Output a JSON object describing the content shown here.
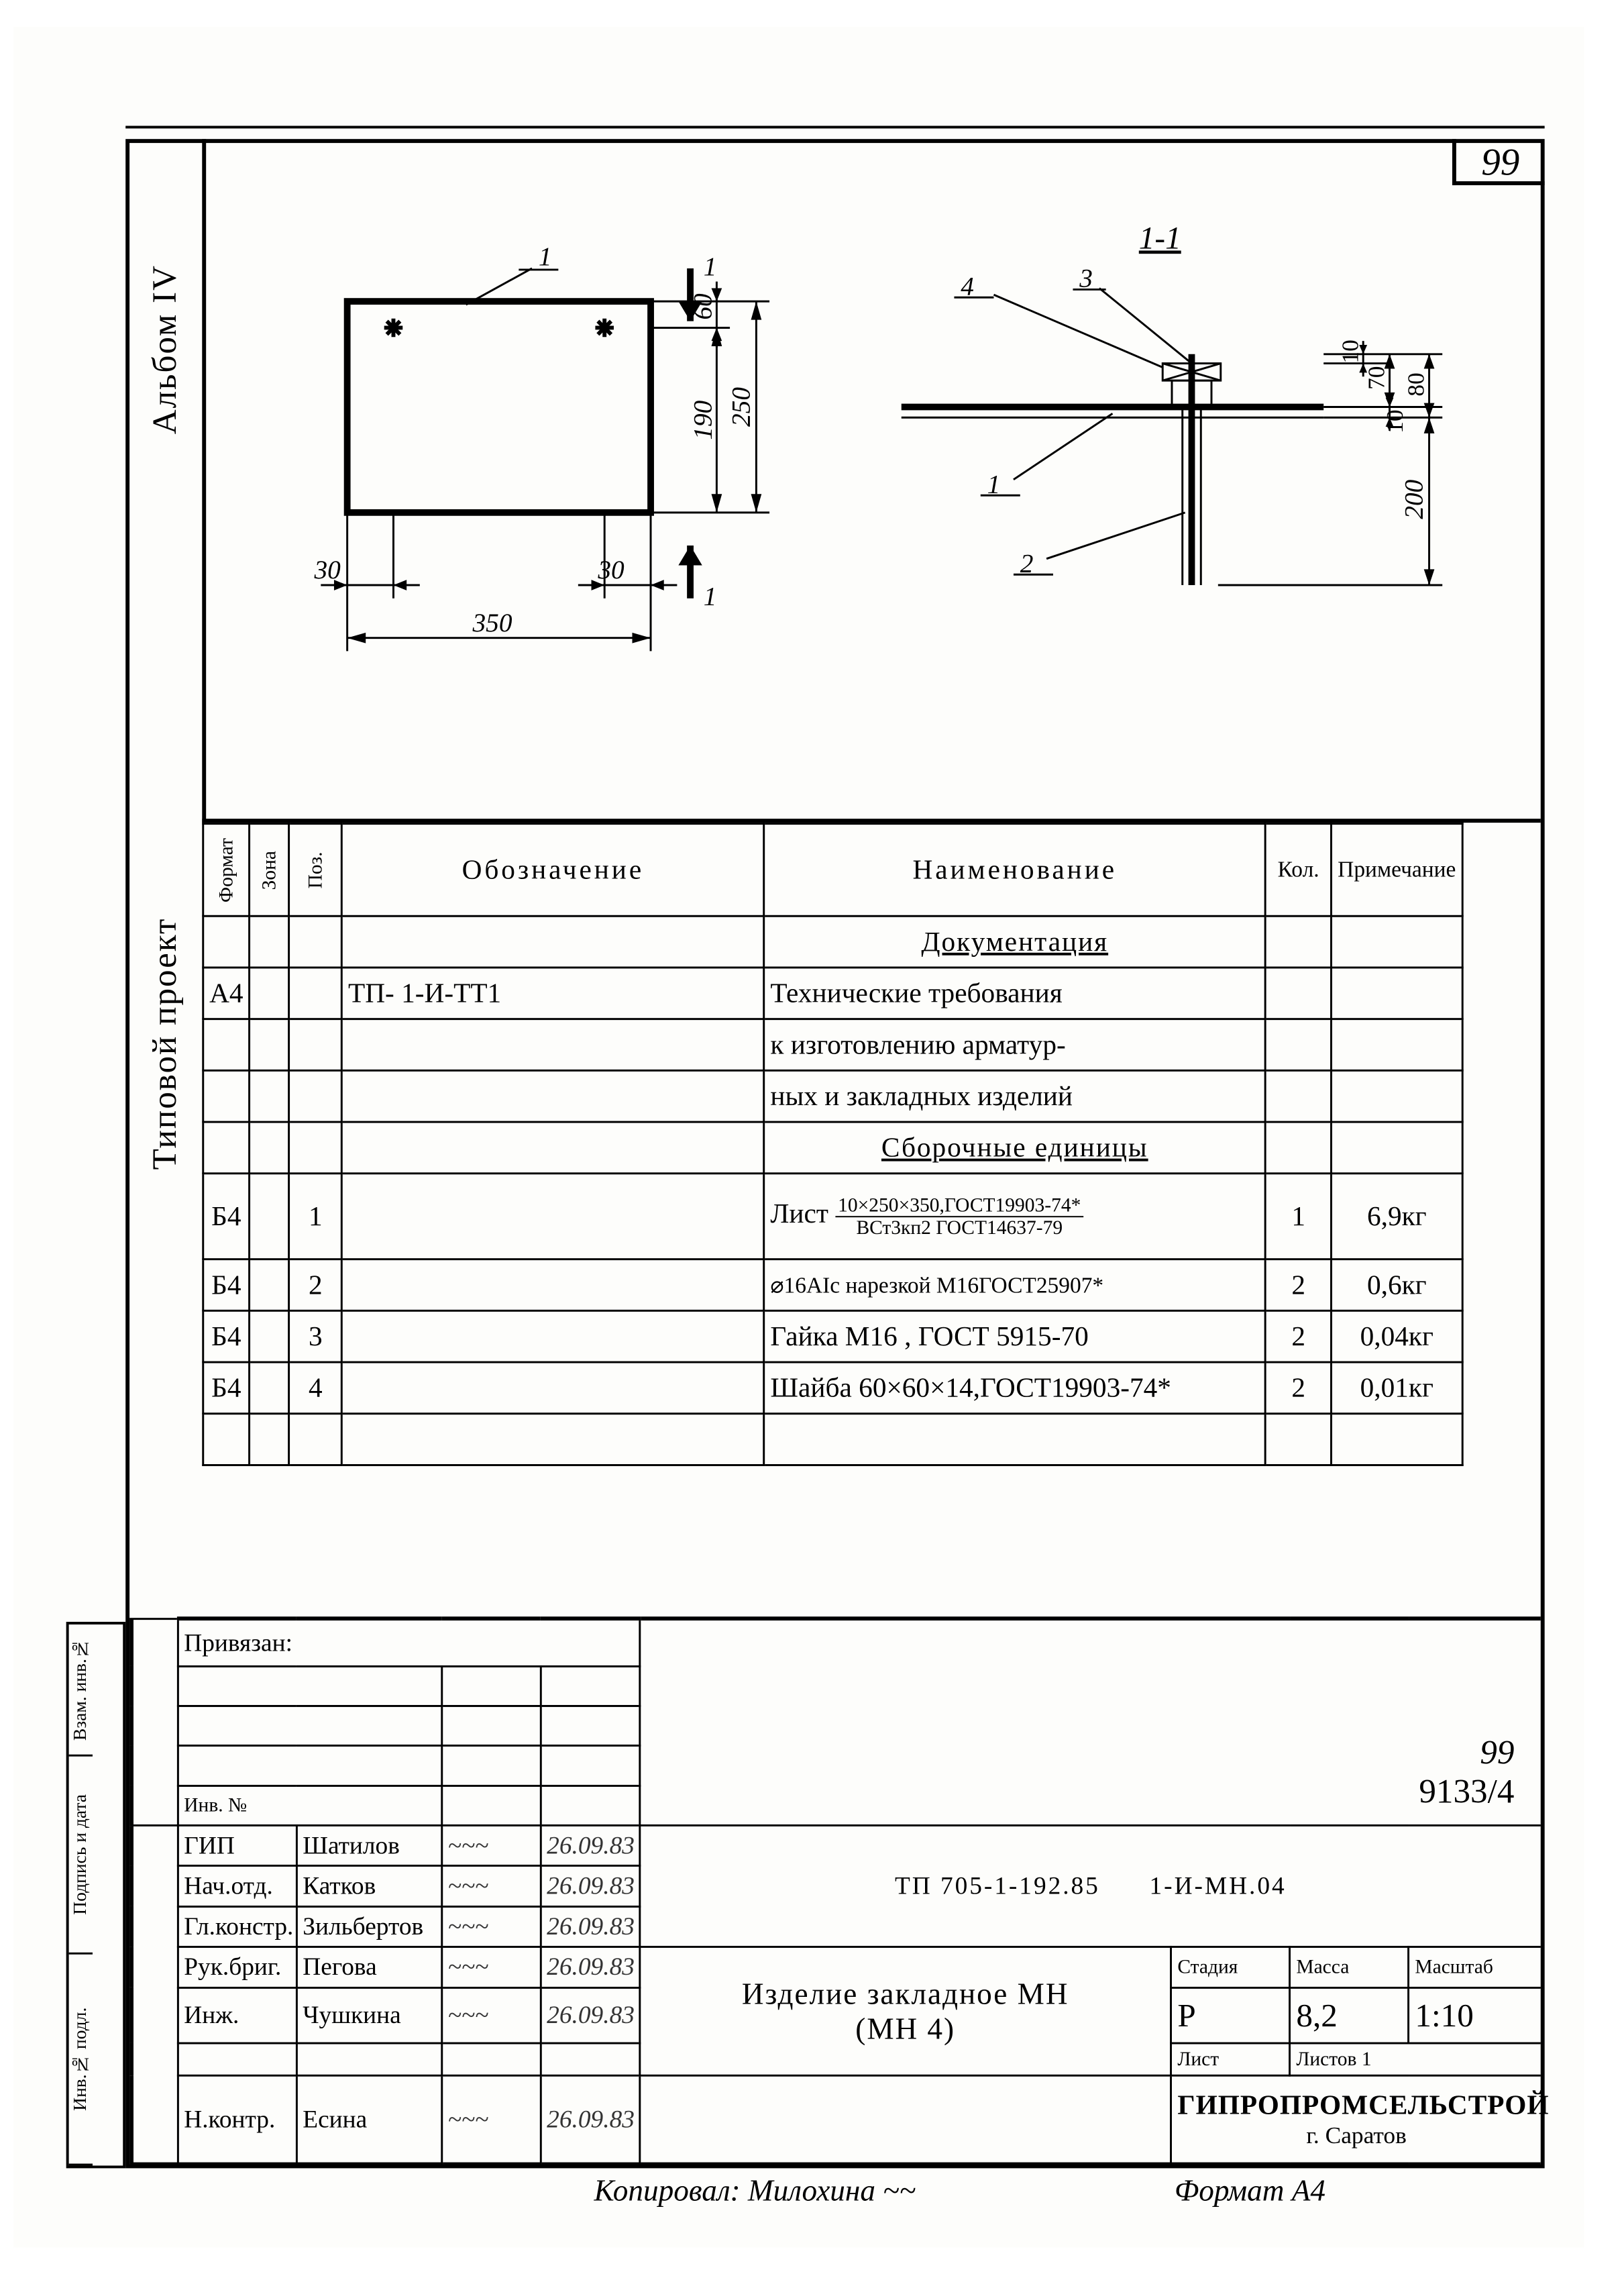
{
  "page_number": "99",
  "side_labels": {
    "album": "Альбом IV",
    "project": "Типовой проект"
  },
  "drawing": {
    "front_view": {
      "width": "350",
      "height_total": "250",
      "height_mid": "190",
      "top_gap": "60",
      "inset_left": "30",
      "inset_right": "30",
      "callout": "1",
      "section_mark": "1"
    },
    "section_view": {
      "title": "1-1",
      "dims": {
        "a": "10",
        "b": "70",
        "c": "80",
        "d": "10",
        "stem": "200"
      },
      "callouts": [
        "4",
        "3",
        "1",
        "2"
      ]
    }
  },
  "spec_table": {
    "headers": {
      "format": "Формат",
      "zone": "Зона",
      "pos": "Поз.",
      "designation": "Обозначение",
      "name": "Наименование",
      "qty": "Кол.",
      "note": "Примечание"
    },
    "rows": [
      {
        "f": "",
        "z": "",
        "p": "",
        "des": "",
        "name": "Документация",
        "name_u": true,
        "q": "",
        "note": ""
      },
      {
        "f": "А4",
        "z": "",
        "p": "",
        "des": "ТП-                     1-И-ТТ1",
        "name": "Технические требования",
        "q": "",
        "note": ""
      },
      {
        "f": "",
        "z": "",
        "p": "",
        "des": "",
        "name": "к изготовлению арматур-",
        "q": "",
        "note": ""
      },
      {
        "f": "",
        "z": "",
        "p": "",
        "des": "",
        "name": "ных и закладных изделий",
        "q": "",
        "note": ""
      },
      {
        "f": "",
        "z": "",
        "p": "",
        "des": "",
        "name": "Сборочные единицы",
        "name_u": true,
        "q": "",
        "note": ""
      },
      {
        "f": "Б4",
        "z": "",
        "p": "1",
        "des": "",
        "name_frac": {
          "pre": "Лист",
          "num": "10×250×350,ГОСТ19903-74*",
          "den": "ВСт3кп2 ГОСТ14637-79"
        },
        "q": "1",
        "note": "6,9кг",
        "tall": true
      },
      {
        "f": "Б4",
        "z": "",
        "p": "2",
        "des": "",
        "name": "⌀16АIс нарезкой М16ГОСТ25907*",
        "q": "2",
        "note": "0,6кг"
      },
      {
        "f": "Б4",
        "z": "",
        "p": "3",
        "des": "",
        "name": "Гайка М16 , ГОСТ 5915-70",
        "q": "2",
        "note": "0,04кг"
      },
      {
        "f": "Б4",
        "z": "",
        "p": "4",
        "des": "",
        "name": "Шайба 60×60×14,ГОСТ19903-74*",
        "q": "2",
        "note": "0,01кг"
      },
      {
        "f": "",
        "z": "",
        "p": "",
        "des": "",
        "name": "",
        "q": "",
        "note": ""
      }
    ]
  },
  "title_block": {
    "bound_label": "Привязан:",
    "inv_label": "Инв. №",
    "roles": [
      {
        "role": "ГИП",
        "name": "Шатилов",
        "date": "26.09.83"
      },
      {
        "role": "Нач.отд.",
        "name": "Катков",
        "date": "26.09.83"
      },
      {
        "role": "Гл.констр.",
        "name": "Зильбертов",
        "date": "26.09.83"
      },
      {
        "role": "Рук.бриг.",
        "name": "Пегова",
        "date": "26.09.83"
      },
      {
        "role": "Инж.",
        "name": "Чушкина",
        "date": "26.09.83"
      },
      {
        "role": "",
        "name": "",
        "date": ""
      },
      {
        "role": "Н.контр.",
        "name": "Есина",
        "date": "26.09.83"
      }
    ],
    "doc_code": "ТП 705-1-192.85",
    "doc_suffix": "1-И-МН.04",
    "doc_ref_top": "99",
    "doc_ref": "9133/4",
    "title": "Изделие закладное МН",
    "subtitle": "(МН 4)",
    "stage_h": "Стадия",
    "mass_h": "Масса",
    "scale_h": "Масштаб",
    "stage": "Р",
    "mass": "8,2",
    "scale": "1:10",
    "sheet_h": "Лист",
    "sheets_h": "Листов 1",
    "org": "ГИПРОПРОМСЕЛЬСТРОЙ",
    "org_city": "г. Саратов"
  },
  "left_stub": [
    "Инв.№ подл.",
    "Подпись и дата",
    "Взам. инв.№"
  ],
  "footer": {
    "copied": "Копировал: Милохина",
    "format": "Формат А4"
  },
  "colors": {
    "ink": "#000000",
    "paper": "#fdfdfb"
  }
}
